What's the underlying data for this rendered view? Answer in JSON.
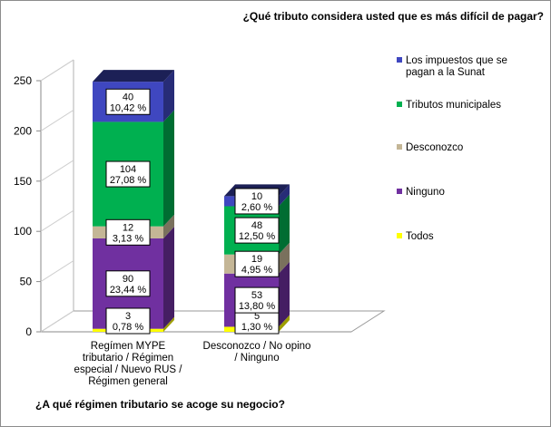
{
  "chart_data": {
    "type": "bar",
    "stacked": true,
    "title": "¿Qué tributo considera usted que es más difícil de pagar?",
    "xlabel": "¿A qué régimen tributario se acoge su negocio?",
    "ylabel": "",
    "ylim": [
      0,
      250
    ],
    "yticks": [
      "0",
      "50",
      "100",
      "150",
      "200",
      "250"
    ],
    "grid": false,
    "legend_position": "right",
    "categories": [
      [
        "Regímen MYPE",
        "tributario / Régimen",
        "especial / Nuevo RUS /",
        "Régimen general"
      ],
      [
        "Desconozco / No opino",
        "/ Ninguno"
      ]
    ],
    "series": [
      {
        "name": "Todos",
        "color": "#ffff00",
        "values": [
          3,
          5
        ],
        "labels": [
          [
            "3",
            "0,78 %"
          ],
          [
            "5",
            "1,30 %"
          ]
        ]
      },
      {
        "name": "Ninguno",
        "color": "#7030a0",
        "values": [
          90,
          53
        ],
        "labels": [
          [
            "90",
            "23,44 %"
          ],
          [
            "53",
            "13,80 %"
          ]
        ]
      },
      {
        "name": "Desconozco",
        "color": "#c4b696",
        "values": [
          12,
          19
        ],
        "labels": [
          [
            "12",
            "3,13 %"
          ],
          [
            "19",
            "4,95 %"
          ]
        ]
      },
      {
        "name": "Tributos municipales",
        "color": "#00b050",
        "values": [
          104,
          48
        ],
        "labels": [
          [
            "104",
            "27,08 %"
          ],
          [
            "48",
            "12,50 %"
          ]
        ]
      },
      {
        "name": "Los impuestos que se pagan a la Sunat",
        "legend_lines": [
          "Los impuestos que se",
          "pagan a la Sunat"
        ],
        "color": "#3f47c0",
        "values": [
          40,
          10
        ],
        "labels": [
          [
            "40",
            "10,42 %"
          ],
          [
            "10",
            "2,60 %"
          ]
        ]
      }
    ]
  }
}
